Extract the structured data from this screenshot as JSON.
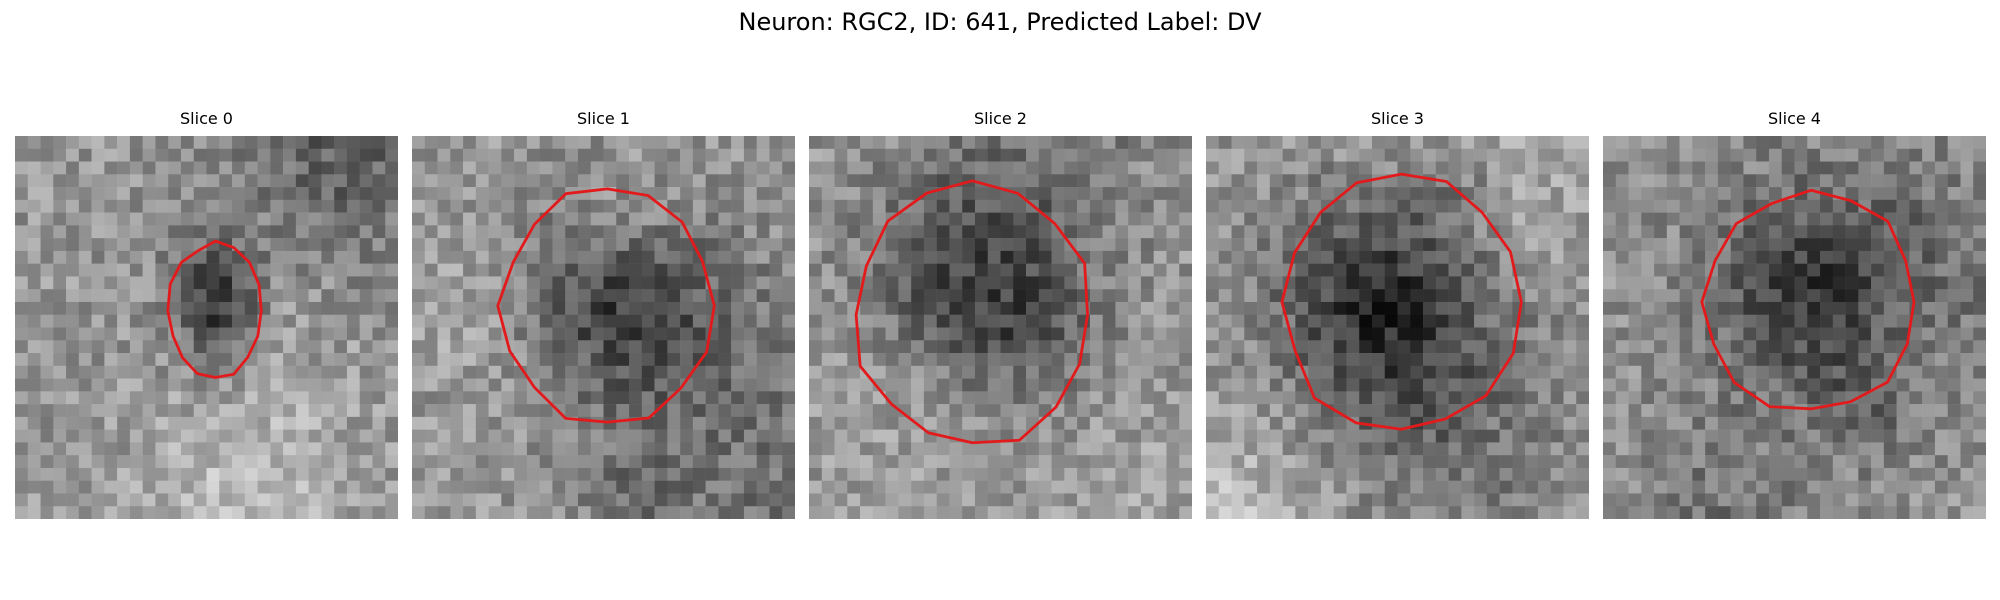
{
  "figure": {
    "title": "Neuron: RGC2, ID: 641, Predicted Label: DV",
    "contour_color": "#e31a1c"
  },
  "slices": [
    {
      "title": "Slice 0",
      "contour": {
        "cx": 15.7,
        "cy": 13.7,
        "rx": 3.7,
        "ry": 5.3
      },
      "dark_center": [
        15.8,
        13.8
      ]
    },
    {
      "title": "Slice 1",
      "contour": {
        "cx": 15.3,
        "cy": 13.3,
        "rx": 8.3,
        "ry": 9.3
      },
      "dark_center": [
        15.0,
        12.0
      ]
    },
    {
      "title": "Slice 2",
      "contour": {
        "cx": 12.8,
        "cy": 14.0,
        "rx": 9.3,
        "ry": 10.3
      },
      "dark_center": [
        12.5,
        12.0
      ]
    },
    {
      "title": "Slice 3",
      "contour": {
        "cx": 15.3,
        "cy": 13.0,
        "rx": 9.3,
        "ry": 10.3
      },
      "dark_center": [
        14.5,
        11.5
      ]
    },
    {
      "title": "Slice 4",
      "contour": {
        "cx": 16.3,
        "cy": 13.0,
        "rx": 8.3,
        "ry": 8.7
      },
      "dark_center": [
        16.0,
        13.0
      ]
    }
  ]
}
